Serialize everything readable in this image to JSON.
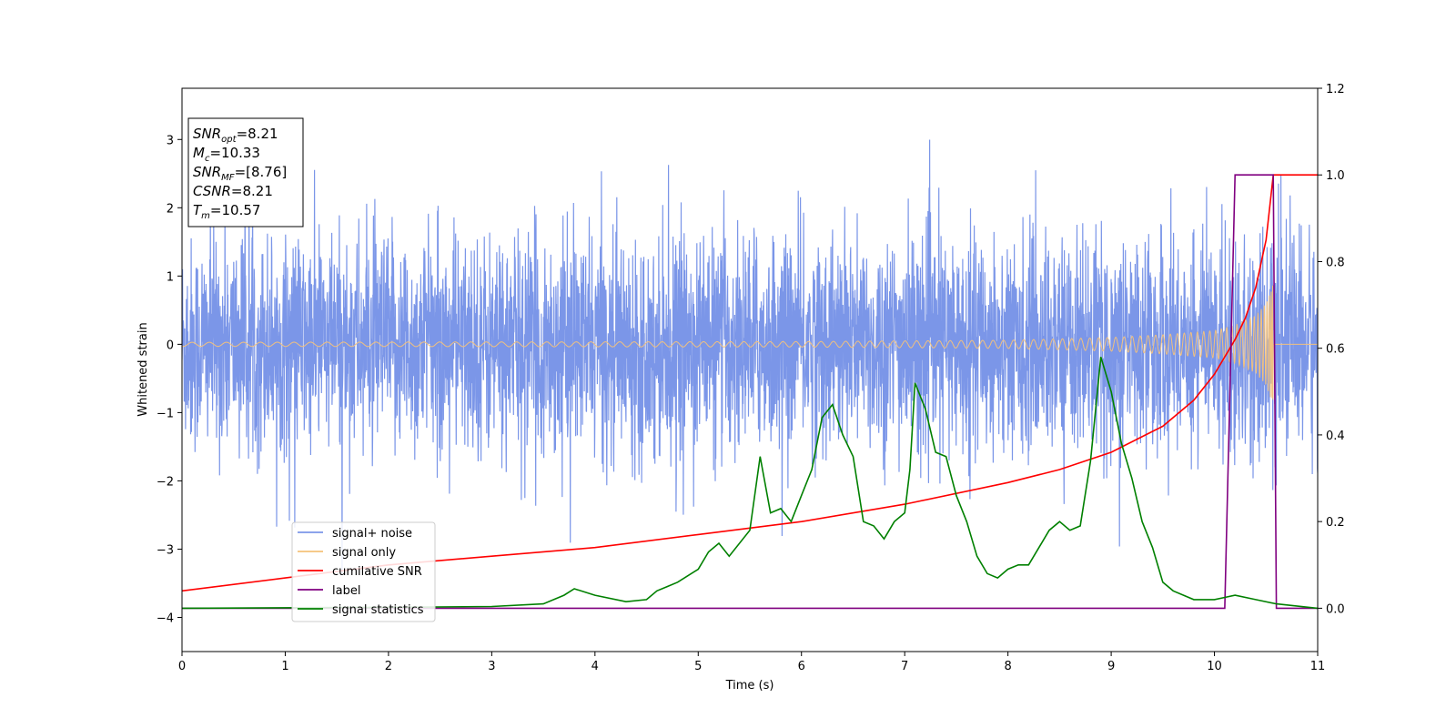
{
  "chart_data": {
    "type": "line",
    "xlabel": "Time (s)",
    "ylabel": "Whitened strain",
    "xlim": [
      0,
      11
    ],
    "ylim": [
      -4.5,
      3.75
    ],
    "y2lim": [
      -0.1,
      1.2
    ],
    "xticks": [
      "0",
      "1",
      "2",
      "3",
      "4",
      "5",
      "6",
      "7",
      "8",
      "9",
      "10",
      "11"
    ],
    "yticks": [
      "−4",
      "−3",
      "−2",
      "−1",
      "0",
      "1",
      "2",
      "3"
    ],
    "y2ticks": [
      "0.0",
      "0.2",
      "0.4",
      "0.6",
      "0.8",
      "1.0",
      "1.2"
    ],
    "grid": false,
    "legend_position": "lower-left",
    "info": [
      {
        "sym": "SNR",
        "sub": "opt",
        "val": "=8.21"
      },
      {
        "sym": "M",
        "sub": "c",
        "val": "=10.33"
      },
      {
        "sym": "SNR",
        "sub": "MF",
        "val": "=[8.76]"
      },
      {
        "sym": "CSNR",
        "sub": "",
        "val": "=8.21"
      },
      {
        "sym": "T",
        "sub": "m",
        "val": "=10.57"
      }
    ],
    "series": [
      {
        "name": "signal+ noise",
        "color": "#7b96e8",
        "axis": "left",
        "kind": "noise",
        "sigma": 0.78
      },
      {
        "name": "signal only",
        "color": "#f5c27a",
        "axis": "left",
        "kind": "chirp",
        "tc": 10.57,
        "envelope": {
          "x": [
            0,
            6,
            8,
            9,
            9.5,
            10,
            10.2,
            10.4,
            10.5,
            10.57
          ],
          "y": [
            0.03,
            0.04,
            0.06,
            0.1,
            0.14,
            0.2,
            0.28,
            0.42,
            0.6,
            0.9
          ]
        }
      },
      {
        "name": "cumilative SNR",
        "color": "#ff0000",
        "axis": "right",
        "x": [
          0,
          1,
          2,
          3,
          4,
          5,
          6,
          7,
          8,
          8.5,
          9,
          9.5,
          9.8,
          10,
          10.2,
          10.3,
          10.4,
          10.5,
          10.57,
          11
        ],
        "y": [
          0.04,
          0.07,
          0.1,
          0.12,
          0.14,
          0.17,
          0.2,
          0.24,
          0.29,
          0.32,
          0.36,
          0.42,
          0.48,
          0.54,
          0.62,
          0.67,
          0.74,
          0.85,
          1.0,
          1.0
        ]
      },
      {
        "name": "label",
        "color": "#800080",
        "axis": "right",
        "x": [
          0,
          10.1,
          10.2,
          10.57,
          10.6,
          11
        ],
        "y": [
          0,
          0,
          1,
          1,
          0,
          0
        ]
      },
      {
        "name": "signal statistics",
        "color": "#008000",
        "axis": "right",
        "x": [
          0,
          2,
          3,
          3.5,
          3.7,
          3.8,
          4.0,
          4.3,
          4.5,
          4.6,
          4.7,
          4.8,
          5.0,
          5.1,
          5.2,
          5.3,
          5.5,
          5.6,
          5.7,
          5.8,
          5.9,
          6.0,
          6.1,
          6.2,
          6.3,
          6.4,
          6.5,
          6.6,
          6.7,
          6.8,
          6.9,
          7.0,
          7.05,
          7.1,
          7.2,
          7.3,
          7.4,
          7.5,
          7.6,
          7.7,
          7.8,
          7.9,
          8.0,
          8.1,
          8.2,
          8.3,
          8.4,
          8.5,
          8.6,
          8.7,
          8.8,
          8.9,
          9.0,
          9.1,
          9.2,
          9.3,
          9.4,
          9.5,
          9.6,
          9.8,
          10.0,
          10.1,
          10.2,
          10.4,
          10.6,
          11
        ],
        "y": [
          0,
          0.002,
          0.004,
          0.01,
          0.03,
          0.045,
          0.03,
          0.015,
          0.02,
          0.04,
          0.05,
          0.06,
          0.09,
          0.13,
          0.15,
          0.12,
          0.18,
          0.35,
          0.22,
          0.23,
          0.2,
          0.26,
          0.32,
          0.44,
          0.47,
          0.4,
          0.35,
          0.2,
          0.19,
          0.16,
          0.2,
          0.22,
          0.32,
          0.52,
          0.46,
          0.36,
          0.35,
          0.26,
          0.2,
          0.12,
          0.08,
          0.07,
          0.09,
          0.1,
          0.1,
          0.14,
          0.18,
          0.2,
          0.18,
          0.19,
          0.34,
          0.58,
          0.5,
          0.38,
          0.3,
          0.2,
          0.14,
          0.06,
          0.04,
          0.02,
          0.02,
          0.025,
          0.03,
          0.02,
          0.01,
          0.0
        ]
      }
    ]
  }
}
